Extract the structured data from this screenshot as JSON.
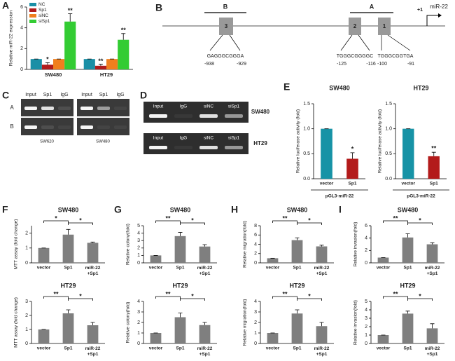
{
  "chart_data": [
    {
      "type": "grouped-bar",
      "panel": "A",
      "ylabel": "Relative miR-22 expression",
      "categories": [
        "SW480",
        "HT29"
      ],
      "series": [
        {
          "name": "NC",
          "color": "#1a8fa6",
          "values": [
            1,
            1
          ],
          "errors": [
            0,
            0
          ],
          "stars": [
            null,
            null
          ]
        },
        {
          "name": "Sp1",
          "color": "#b01c1c",
          "values": [
            0.45,
            0.35
          ],
          "errors": [
            0.2,
            0.15
          ],
          "stars": [
            "*",
            "**"
          ]
        },
        {
          "name": "siNC",
          "color": "#f07f1e",
          "values": [
            1,
            1
          ],
          "errors": [
            0,
            0
          ],
          "stars": [
            null,
            null
          ]
        },
        {
          "name": "siSp1",
          "color": "#33cc33",
          "values": [
            4.6,
            2.85
          ],
          "errors": [
            0.75,
            0.6
          ],
          "stars": [
            "**",
            "**"
          ]
        }
      ],
      "ylim": [
        0,
        6
      ],
      "yticks": [
        0,
        2,
        4,
        6
      ]
    },
    {
      "type": "bar",
      "panel": "E",
      "title": "SW480",
      "ylabel": "Relative luciferase activity (fold)",
      "xlabel": "pGL3-miR-22",
      "categories": [
        "vector",
        "Sp1"
      ],
      "values": [
        1,
        0.4
      ],
      "errors": [
        0,
        0.12
      ],
      "stars": [
        null,
        "*"
      ],
      "colors": [
        "#1793a6",
        "#b31b1b"
      ],
      "ylim": [
        0,
        1.5
      ],
      "yticks": [
        {
          "value": 0,
          "label": "0.0"
        },
        {
          "value": 0.5,
          "label": "0.5"
        },
        {
          "value": 1,
          "label": "1.0"
        },
        {
          "value": 1.5,
          "label": "1.5"
        }
      ]
    },
    {
      "type": "bar",
      "title": "HT29",
      "ylabel": "Relative luciferase activity (fold)",
      "xlabel": "pGL3-miR-22",
      "categories": [
        "vector",
        "Sp1"
      ],
      "values": [
        1,
        0.45
      ],
      "errors": [
        0,
        0.08
      ],
      "stars": [
        null,
        "**"
      ],
      "colors": [
        "#1793a6",
        "#b31b1b"
      ],
      "ylim": [
        0,
        1.5
      ],
      "yticks": [
        {
          "value": 0,
          "label": "0.0"
        },
        {
          "value": 0.5,
          "label": "0.5"
        },
        {
          "value": 1,
          "label": "1.0"
        },
        {
          "value": 1.5,
          "label": "1.5"
        }
      ]
    },
    {
      "type": "bar",
      "panel": "F",
      "title": "SW480",
      "ylabel": "MTT assay (fold change)",
      "categories": [
        "vector",
        "Sp1",
        "miR-22 +Sp1"
      ],
      "values": [
        1,
        1.9,
        1.35
      ],
      "errors": [
        0,
        0.35,
        0.05
      ],
      "brackets": [
        "*",
        "*"
      ],
      "color": "#7f7f7f",
      "ylim": [
        0,
        2.5
      ],
      "yticks": [
        0,
        1,
        2
      ]
    },
    {
      "type": "bar",
      "title": "HT29",
      "ylabel": "MTT assay (fold change)",
      "categories": [
        "vector",
        "Sp1",
        "miR-22 +Sp1"
      ],
      "values": [
        1,
        2.15,
        1.3
      ],
      "errors": [
        0,
        0.25,
        0.2
      ],
      "brackets": [
        "**",
        "*"
      ],
      "color": "#7f7f7f",
      "ylim": [
        0,
        3
      ],
      "yticks": [
        0,
        1,
        2,
        3
      ]
    },
    {
      "type": "bar",
      "panel": "G",
      "title": "SW480",
      "ylabel": "Relative colony(fold)",
      "categories": [
        "vector",
        "Sp1",
        "miR-22 +Sp1"
      ],
      "values": [
        1,
        3.6,
        2.2
      ],
      "errors": [
        0,
        0.5,
        0.25
      ],
      "brackets": [
        "**",
        "*"
      ],
      "color": "#7f7f7f",
      "ylim": [
        0,
        5
      ],
      "yticks": [
        0,
        1,
        2,
        3,
        4,
        5
      ]
    },
    {
      "type": "bar",
      "title": "HT29",
      "ylabel": "Relative colony(fold)",
      "categories": [
        "vector",
        "Sp1",
        "miR-22 +Sp1"
      ],
      "values": [
        1,
        2.5,
        1.75
      ],
      "errors": [
        0,
        0.4,
        0.25
      ],
      "brackets": [
        "**",
        "*"
      ],
      "color": "#7f7f7f",
      "ylim": [
        0,
        4
      ],
      "yticks": [
        0,
        1,
        2,
        3,
        4
      ]
    },
    {
      "type": "bar",
      "panel": "H",
      "title": "SW480",
      "ylabel": "Relative migration(fold)",
      "categories": [
        "vector",
        "Sp1",
        "miR-22 +Sp1"
      ],
      "values": [
        1,
        4.9,
        3.55
      ],
      "errors": [
        0,
        0.5,
        0.25
      ],
      "brackets": [
        "**",
        "*"
      ],
      "color": "#7f7f7f",
      "ylim": [
        0,
        8
      ],
      "yticks": [
        0,
        2,
        4,
        6,
        8
      ]
    },
    {
      "type": "bar",
      "title": "HT29",
      "ylabel": "Relative migration(fold)",
      "categories": [
        "vector",
        "Sp1",
        "miR-22 +Sp1"
      ],
      "values": [
        1,
        2.85,
        1.65
      ],
      "errors": [
        0,
        0.35,
        0.35
      ],
      "brackets": [
        "**",
        "*"
      ],
      "color": "#7f7f7f",
      "ylim": [
        0,
        4
      ],
      "yticks": [
        0,
        1,
        2,
        3,
        4
      ]
    },
    {
      "type": "bar",
      "panel": "I",
      "title": "SW480",
      "ylabel": "Relative invasion(fold)",
      "categories": [
        "vector",
        "Sp1",
        "miR-22 +Sp1"
      ],
      "values": [
        0.85,
        4.1,
        3.0
      ],
      "errors": [
        0,
        0.6,
        0.25
      ],
      "brackets": [
        "**",
        "*"
      ],
      "color": "#7f7f7f",
      "ylim": [
        0,
        6
      ],
      "yticks": [
        0,
        2,
        4,
        6
      ]
    },
    {
      "type": "bar",
      "title": "HT29",
      "ylabel": "Relative invasion(fold)",
      "categories": [
        "vector",
        "Sp1",
        "miR-22 +Sp1"
      ],
      "values": [
        1,
        3.55,
        1.8
      ],
      "errors": [
        0,
        0.3,
        0.55
      ],
      "brackets": [
        "**",
        "*"
      ],
      "color": "#7f7f7f",
      "ylim": [
        0,
        5
      ],
      "yticks": [
        0,
        1,
        2,
        3,
        4,
        5
      ]
    }
  ],
  "diagram": {
    "panel": "B",
    "boxes": [
      "3",
      "2",
      "1"
    ],
    "regions": [
      "B",
      "A"
    ],
    "tss": "+1",
    "gene": "miR-22",
    "sites": [
      {
        "seq": "GAGGGCGGGA",
        "start": -938,
        "end": -929
      },
      {
        "seq": "TGGGCGGGGC",
        "start": -125,
        "end": -116
      },
      {
        "seq": "TGGGCGGTGA",
        "start": -100,
        "end": -91
      }
    ]
  },
  "gel_c": {
    "panel": "C",
    "rows": [
      "A",
      "B"
    ],
    "blots": [
      {
        "columns": [
          "Input",
          "Sp1",
          "IgG"
        ],
        "caption": "SW620"
      },
      {
        "columns": [
          "Input",
          "Sp1",
          "IgG"
        ],
        "caption": "SW480"
      }
    ]
  },
  "gel_d": {
    "panel": "D",
    "blots": [
      {
        "columns": [
          "Input",
          "IgG",
          "siNC",
          "siSp1"
        ],
        "name": "SW480"
      },
      {
        "columns": [
          "Input",
          "IgG",
          "siNC",
          "siSp1"
        ],
        "name": "HT29"
      }
    ]
  }
}
